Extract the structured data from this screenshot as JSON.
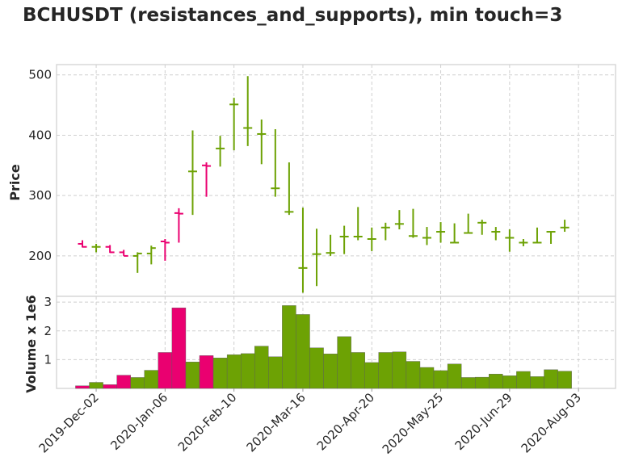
{
  "chart_data": [
    {
      "type": "ohlc",
      "title": "BCHUSDT (resistances_and_supports), min touch=3",
      "ylabel": "Price",
      "ylim": [
        133,
        517
      ],
      "yticks": [
        200,
        300,
        400,
        500
      ],
      "grid": true,
      "colors": {
        "up": "#6da204",
        "down": "#ea0070"
      },
      "x": [
        "2019-11-25",
        "2019-12-02",
        "2019-12-09",
        "2019-12-16",
        "2019-12-23",
        "2019-12-30",
        "2020-01-06",
        "2020-01-13",
        "2020-01-20",
        "2020-01-27",
        "2020-02-03",
        "2020-02-10",
        "2020-02-17",
        "2020-02-24",
        "2020-03-02",
        "2020-03-09",
        "2020-03-16",
        "2020-03-23",
        "2020-03-30",
        "2020-04-06",
        "2020-04-13",
        "2020-04-20",
        "2020-04-27",
        "2020-05-04",
        "2020-05-11",
        "2020-05-18",
        "2020-05-25",
        "2020-06-01",
        "2020-06-08",
        "2020-06-15",
        "2020-06-22",
        "2020-06-29",
        "2020-07-06",
        "2020-07-13",
        "2020-07-20",
        "2020-07-27"
      ],
      "xticks": [
        {
          "index": 1,
          "label": "2019-Dec-02"
        },
        {
          "index": 6,
          "label": "2020-Jan-06"
        },
        {
          "index": 11,
          "label": "2020-Feb-10"
        },
        {
          "index": 16,
          "label": "2020-Mar-16"
        },
        {
          "index": 21,
          "label": "2020-Apr-20"
        },
        {
          "index": 26,
          "label": "2020-May-25"
        },
        {
          "index": 31,
          "label": "2020-Jun-29"
        },
        {
          "index": 36,
          "label": "2020-Aug-03"
        }
      ],
      "open": [
        220,
        215,
        215,
        206,
        200,
        204,
        224,
        271,
        340,
        350,
        378,
        451,
        412,
        402,
        312,
        273,
        180,
        203,
        205,
        232,
        232,
        228,
        247,
        253,
        233,
        230,
        240,
        222,
        238,
        255,
        240,
        230,
        222,
        222,
        240,
        247
      ],
      "high": [
        226,
        220,
        218,
        210,
        206,
        217,
        228,
        279,
        408,
        355,
        399,
        462,
        498,
        426,
        410,
        355,
        280,
        245,
        235,
        250,
        281,
        247,
        255,
        276,
        278,
        248,
        256,
        254,
        270,
        260,
        248,
        244,
        228,
        247,
        240,
        260
      ],
      "low": [
        214,
        206,
        205,
        200,
        172,
        186,
        192,
        222,
        268,
        298,
        348,
        375,
        382,
        352,
        298,
        268,
        139,
        150,
        200,
        203,
        226,
        208,
        226,
        244,
        230,
        218,
        222,
        222,
        238,
        235,
        226,
        207,
        216,
        222,
        220,
        240
      ],
      "close": [
        215,
        215,
        206,
        200,
        204,
        213,
        222,
        270,
        340,
        349,
        378,
        451,
        412,
        402,
        312,
        273,
        180,
        203,
        205,
        232,
        232,
        228,
        247,
        253,
        233,
        230,
        240,
        222,
        238,
        255,
        240,
        230,
        222,
        222,
        240,
        247
      ]
    },
    {
      "type": "bar",
      "ylabel": "Volume x 1e6",
      "ylim": [
        0,
        3.2
      ],
      "yticks": [
        1,
        2,
        3
      ],
      "grid": true,
      "x": [
        "2019-11-25",
        "2019-12-02",
        "2019-12-09",
        "2019-12-16",
        "2019-12-23",
        "2019-12-30",
        "2020-01-06",
        "2020-01-13",
        "2020-01-20",
        "2020-01-27",
        "2020-02-03",
        "2020-02-10",
        "2020-02-17",
        "2020-02-24",
        "2020-03-02",
        "2020-03-09",
        "2020-03-16",
        "2020-03-23",
        "2020-03-30",
        "2020-04-06",
        "2020-04-13",
        "2020-04-20",
        "2020-04-27",
        "2020-05-04",
        "2020-05-11",
        "2020-05-18",
        "2020-05-25",
        "2020-06-01",
        "2020-06-08",
        "2020-06-15",
        "2020-06-22",
        "2020-06-29",
        "2020-07-06",
        "2020-07-13",
        "2020-07-20",
        "2020-07-27"
      ],
      "values": [
        0.09,
        0.21,
        0.13,
        0.46,
        0.38,
        0.63,
        1.25,
        2.8,
        0.92,
        1.14,
        1.06,
        1.17,
        1.21,
        1.47,
        1.1,
        2.88,
        2.57,
        1.41,
        1.2,
        1.8,
        1.25,
        0.9,
        1.25,
        1.27,
        0.94,
        0.73,
        0.62,
        0.85,
        0.38,
        0.39,
        0.5,
        0.44,
        0.59,
        0.41,
        0.65,
        0.6
      ]
    }
  ]
}
